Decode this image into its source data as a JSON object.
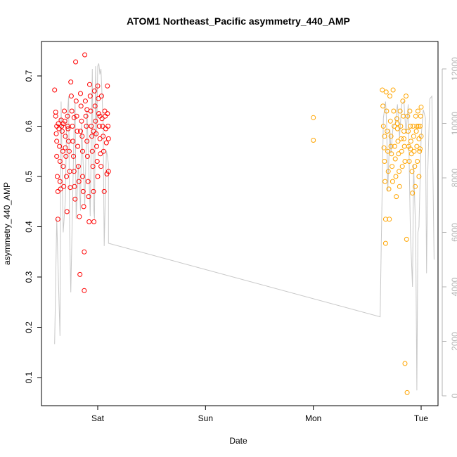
{
  "chart_data": {
    "type": "scatter",
    "title": "ATOM1 Northeast_Pacific asymmetry_440_AMP",
    "xlabel": "Date",
    "ylabel": "asymmetry_440_AMP",
    "x_ticks": [
      {
        "label": "Sat",
        "day": 1
      },
      {
        "label": "Sun",
        "day": 2
      },
      {
        "label": "Mon",
        "day": 3
      },
      {
        "label": "Tue",
        "day": 4
      }
    ],
    "xlim_days": [
      0.52,
      4.1
    ],
    "ylim": [
      0.055,
      0.765
    ],
    "y_ticks": [
      0.1,
      0.2,
      0.3,
      0.4,
      0.5,
      0.6,
      0.7
    ],
    "y2_ticks": [
      0,
      2000,
      4000,
      6000,
      8000,
      10000,
      12000
    ],
    "y2lim": [
      -500,
      12500
    ],
    "colors": {
      "series1": "#ff0000",
      "series2": "#ffa500",
      "line": "#c8c8c8",
      "right_axis": "#b3b3b3"
    },
    "series": [
      {
        "color": "#ff0000",
        "points": [
          [
            0.6,
            0.672
          ],
          [
            0.61,
            0.628
          ],
          [
            0.61,
            0.62
          ],
          [
            0.615,
            0.585
          ],
          [
            0.62,
            0.57
          ],
          [
            0.62,
            0.54
          ],
          [
            0.625,
            0.5
          ],
          [
            0.63,
            0.47
          ],
          [
            0.63,
            0.415
          ],
          [
            0.635,
            0.605
          ],
          [
            0.64,
            0.595
          ],
          [
            0.645,
            0.56
          ],
          [
            0.65,
            0.53
          ],
          [
            0.65,
            0.49
          ],
          [
            0.655,
            0.475
          ],
          [
            0.66,
            0.612
          ],
          [
            0.665,
            0.6
          ],
          [
            0.67,
            0.59
          ],
          [
            0.675,
            0.55
          ],
          [
            0.68,
            0.52
          ],
          [
            0.685,
            0.48
          ],
          [
            0.69,
            0.63
          ],
          [
            0.695,
            0.61
          ],
          [
            0.7,
            0.58
          ],
          [
            0.7,
            0.557
          ],
          [
            0.705,
            0.54
          ],
          [
            0.71,
            0.5
          ],
          [
            0.715,
            0.43
          ],
          [
            0.72,
            0.62
          ],
          [
            0.725,
            0.595
          ],
          [
            0.73,
            0.57
          ],
          [
            0.735,
            0.55
          ],
          [
            0.74,
            0.51
          ],
          [
            0.745,
            0.478
          ],
          [
            0.75,
            0.688
          ],
          [
            0.755,
            0.66
          ],
          [
            0.76,
            0.63
          ],
          [
            0.765,
            0.6
          ],
          [
            0.77,
            0.57
          ],
          [
            0.775,
            0.54
          ],
          [
            0.78,
            0.51
          ],
          [
            0.785,
            0.48
          ],
          [
            0.79,
            0.455
          ],
          [
            0.795,
            0.728
          ],
          [
            0.8,
            0.65
          ],
          [
            0.805,
            0.62
          ],
          [
            0.81,
            0.59
          ],
          [
            0.815,
            0.56
          ],
          [
            0.82,
            0.52
          ],
          [
            0.825,
            0.49
          ],
          [
            0.83,
            0.42
          ],
          [
            0.835,
            0.305
          ],
          [
            0.84,
            0.665
          ],
          [
            0.845,
            0.64
          ],
          [
            0.85,
            0.61
          ],
          [
            0.855,
            0.58
          ],
          [
            0.86,
            0.55
          ],
          [
            0.86,
            0.5
          ],
          [
            0.865,
            0.47
          ],
          [
            0.87,
            0.44
          ],
          [
            0.875,
            0.35
          ],
          [
            0.875,
            0.273
          ],
          [
            0.88,
            0.742
          ],
          [
            0.885,
            0.65
          ],
          [
            0.89,
            0.62
          ],
          [
            0.895,
            0.6
          ],
          [
            0.9,
            0.57
          ],
          [
            0.905,
            0.54
          ],
          [
            0.91,
            0.49
          ],
          [
            0.915,
            0.46
          ],
          [
            0.92,
            0.41
          ],
          [
            0.925,
            0.683
          ],
          [
            0.93,
            0.66
          ],
          [
            0.935,
            0.63
          ],
          [
            0.94,
            0.6
          ],
          [
            0.945,
            0.58
          ],
          [
            0.95,
            0.55
          ],
          [
            0.955,
            0.52
          ],
          [
            0.96,
            0.47
          ],
          [
            0.965,
            0.41
          ],
          [
            0.97,
            0.67
          ],
          [
            0.975,
            0.64
          ],
          [
            0.98,
            0.61
          ],
          [
            0.985,
            0.585
          ],
          [
            0.99,
            0.56
          ],
          [
            0.995,
            0.53
          ],
          [
            1.0,
            0.5
          ],
          [
            1.0,
            0.68
          ],
          [
            1.005,
            0.655
          ],
          [
            1.01,
            0.625
          ],
          [
            1.015,
            0.6
          ],
          [
            1.02,
            0.575
          ],
          [
            1.025,
            0.545
          ],
          [
            1.03,
            0.52
          ],
          [
            1.035,
            0.66
          ],
          [
            1.04,
            0.615
          ],
          [
            1.045,
            0.6
          ],
          [
            1.05,
            0.58
          ],
          [
            1.055,
            0.55
          ],
          [
            1.06,
            0.47
          ],
          [
            1.065,
            0.63
          ],
          [
            1.07,
            0.62
          ],
          [
            1.075,
            0.595
          ],
          [
            1.08,
            0.567
          ],
          [
            1.085,
            0.505
          ],
          [
            1.09,
            0.68
          ],
          [
            1.09,
            0.625
          ],
          [
            1.095,
            0.6
          ],
          [
            1.1,
            0.575
          ],
          [
            1.1,
            0.51
          ],
          [
            0.62,
            0.6
          ],
          [
            0.68,
            0.605
          ],
          [
            0.72,
            0.6
          ],
          [
            0.78,
            0.617
          ],
          [
            0.84,
            0.59
          ],
          [
            0.9,
            0.633
          ],
          [
            0.96,
            0.59
          ],
          [
            1.02,
            0.62
          ]
        ]
      },
      {
        "color": "#ffa500",
        "points": [
          [
            3.0,
            0.617
          ],
          [
            3.0,
            0.572
          ],
          [
            3.64,
            0.672
          ],
          [
            3.645,
            0.64
          ],
          [
            3.65,
            0.6
          ],
          [
            3.655,
            0.557
          ],
          [
            3.66,
            0.53
          ],
          [
            3.665,
            0.49
          ],
          [
            3.67,
            0.415
          ],
          [
            3.67,
            0.367
          ],
          [
            3.675,
            0.668
          ],
          [
            3.68,
            0.63
          ],
          [
            3.685,
            0.59
          ],
          [
            3.69,
            0.55
          ],
          [
            3.695,
            0.51
          ],
          [
            3.7,
            0.475
          ],
          [
            3.705,
            0.415
          ],
          [
            3.71,
            0.66
          ],
          [
            3.715,
            0.61
          ],
          [
            3.72,
            0.58
          ],
          [
            3.725,
            0.545
          ],
          [
            3.73,
            0.52
          ],
          [
            3.735,
            0.49
          ],
          [
            3.74,
            0.672
          ],
          [
            3.745,
            0.63
          ],
          [
            3.75,
            0.6
          ],
          [
            3.755,
            0.56
          ],
          [
            3.76,
            0.535
          ],
          [
            3.765,
            0.5
          ],
          [
            3.77,
            0.46
          ],
          [
            3.775,
            0.615
          ],
          [
            3.78,
            0.595
          ],
          [
            3.785,
            0.57
          ],
          [
            3.79,
            0.545
          ],
          [
            3.795,
            0.51
          ],
          [
            3.8,
            0.48
          ],
          [
            3.805,
            0.63
          ],
          [
            3.81,
            0.6
          ],
          [
            3.815,
            0.575
          ],
          [
            3.82,
            0.55
          ],
          [
            3.825,
            0.52
          ],
          [
            3.83,
            0.65
          ],
          [
            3.835,
            0.62
          ],
          [
            3.84,
            0.59
          ],
          [
            3.845,
            0.56
          ],
          [
            3.85,
            0.53
          ],
          [
            3.85,
            0.128
          ],
          [
            3.86,
            0.66
          ],
          [
            3.865,
            0.375
          ],
          [
            3.87,
            0.07
          ],
          [
            3.875,
            0.62
          ],
          [
            3.88,
            0.59
          ],
          [
            3.885,
            0.56
          ],
          [
            3.89,
            0.53
          ],
          [
            3.895,
            0.63
          ],
          [
            3.9,
            0.6
          ],
          [
            3.905,
            0.57
          ],
          [
            3.91,
            0.545
          ],
          [
            3.915,
            0.51
          ],
          [
            3.92,
            0.467
          ],
          [
            3.925,
            0.6
          ],
          [
            3.93,
            0.58
          ],
          [
            3.935,
            0.55
          ],
          [
            3.94,
            0.52
          ],
          [
            3.945,
            0.48
          ],
          [
            3.95,
            0.62
          ],
          [
            3.955,
            0.59
          ],
          [
            3.96,
            0.56
          ],
          [
            3.965,
            0.53
          ],
          [
            3.97,
            0.63
          ],
          [
            3.975,
            0.6
          ],
          [
            3.98,
            0.575
          ],
          [
            3.985,
            0.55
          ],
          [
            3.99,
            0.6
          ],
          [
            3.995,
            0.62
          ],
          [
            4.0,
            0.638
          ],
          [
            4.0,
            0.58
          ],
          [
            3.98,
            0.5
          ],
          [
            3.99,
            0.555
          ],
          [
            3.66,
            0.58
          ],
          [
            3.72,
            0.56
          ],
          [
            3.78,
            0.605
          ],
          [
            3.84,
            0.575
          ],
          [
            3.9,
            0.555
          ],
          [
            3.96,
            0.6
          ]
        ]
      },
      {
        "type": "line",
        "color": "#c8c8c8",
        "axis": "right",
        "points": [
          [
            0.6,
            1900
          ],
          [
            0.62,
            6500
          ],
          [
            0.65,
            2200
          ],
          [
            0.66,
            10800
          ],
          [
            0.68,
            6000
          ],
          [
            0.7,
            7200
          ],
          [
            0.71,
            9800
          ],
          [
            0.73,
            11000
          ],
          [
            0.74,
            6000
          ],
          [
            0.75,
            3800
          ],
          [
            0.78,
            9800
          ],
          [
            0.79,
            10800
          ],
          [
            0.8,
            6500
          ],
          [
            0.82,
            8500
          ],
          [
            0.84,
            6800
          ],
          [
            0.85,
            10000
          ],
          [
            0.88,
            7000
          ],
          [
            0.9,
            10500
          ],
          [
            0.92,
            8000
          ],
          [
            0.93,
            6600
          ],
          [
            0.95,
            12000
          ],
          [
            0.96,
            7000
          ],
          [
            0.97,
            6500
          ],
          [
            0.98,
            12100
          ],
          [
            0.99,
            9500
          ],
          [
            1.0,
            12100
          ],
          [
            1.01,
            12200
          ],
          [
            1.02,
            11800
          ],
          [
            1.03,
            12000
          ],
          [
            1.05,
            10000
          ],
          [
            1.06,
            5500
          ],
          [
            1.08,
            9000
          ],
          [
            1.09,
            8800
          ],
          [
            1.1,
            8500
          ],
          [
            1.1,
            5600
          ],
          [
            3.62,
            2900
          ],
          [
            3.63,
            5600
          ],
          [
            3.65,
            10200
          ],
          [
            3.67,
            10800
          ],
          [
            3.68,
            10000
          ],
          [
            3.69,
            7500
          ],
          [
            3.71,
            9800
          ],
          [
            3.72,
            8900
          ],
          [
            3.74,
            9900
          ],
          [
            3.76,
            10000
          ],
          [
            3.78,
            10700
          ],
          [
            3.8,
            9500
          ],
          [
            3.82,
            10700
          ],
          [
            3.84,
            10800
          ],
          [
            3.86,
            9600
          ],
          [
            3.88,
            10700
          ],
          [
            3.9,
            6000
          ],
          [
            3.92,
            4000
          ],
          [
            3.93,
            8500
          ],
          [
            3.95,
            5900
          ],
          [
            3.96,
            200
          ],
          [
            3.97,
            6000
          ],
          [
            3.98,
            6200
          ],
          [
            4.0,
            9500
          ],
          [
            4.02,
            10500
          ],
          [
            4.04,
            10200
          ],
          [
            4.05,
            4500
          ],
          [
            4.06,
            8000
          ],
          [
            4.08,
            10900
          ],
          [
            4.1,
            11000
          ],
          [
            4.12,
            5000
          ]
        ]
      }
    ]
  }
}
